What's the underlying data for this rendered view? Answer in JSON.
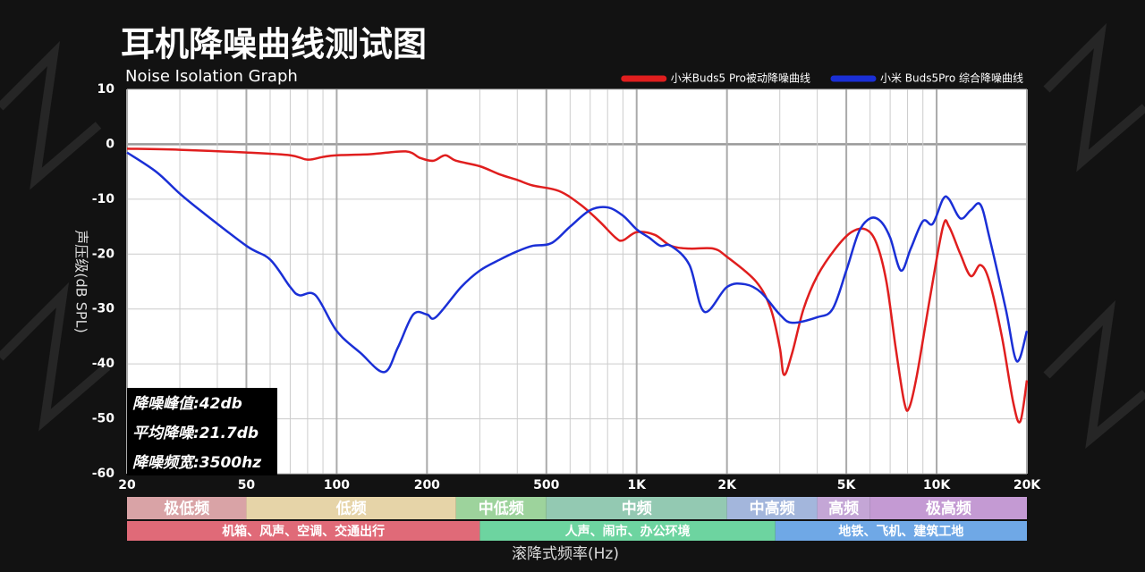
{
  "chart_data": {
    "type": "line",
    "title": "耳机降噪曲线测试图",
    "subtitle": "Noise Isolation Graph",
    "y_label": "声压级(dB SPL)",
    "x_label": "滚降式频率(Hz)",
    "log_x": true,
    "grid": true,
    "legend_position": "top-right",
    "xlim": [
      20,
      20000
    ],
    "xticks": [
      20,
      50,
      100,
      200,
      500,
      {
        "value": 1000,
        "label": "1K"
      },
      {
        "value": 2000,
        "label": "2K"
      },
      {
        "value": 5000,
        "label": "5K"
      },
      {
        "value": 10000,
        "label": "10K"
      },
      {
        "value": 20000,
        "label": "20K"
      }
    ],
    "xminorticks": [
      30,
      40,
      60,
      70,
      80,
      90,
      300,
      400,
      600,
      700,
      800,
      900,
      3000,
      4000,
      6000,
      7000,
      8000,
      9000
    ],
    "ylim": [
      -60,
      10
    ],
    "yticks": [
      -60,
      -50,
      -40,
      -30,
      -20,
      -10,
      0,
      10
    ],
    "series": [
      {
        "name": "小米Buds5 Pro被动降噪曲线",
        "color": "#e01e1e",
        "x": [
          20,
          30,
          50,
          70,
          80,
          90,
          100,
          130,
          170,
          190,
          210,
          230,
          250,
          300,
          350,
          400,
          450,
          550,
          650,
          750,
          850,
          900,
          1000,
          1150,
          1300,
          1500,
          1800,
          2000,
          2500,
          2800,
          3000,
          3100,
          3300,
          3600,
          4000,
          4600,
          5200,
          5800,
          6300,
          6800,
          7300,
          7800,
          8100,
          8600,
          9500,
          10500,
          11000,
          12000,
          13000,
          14000,
          15000,
          16500,
          18000,
          19000,
          20000
        ],
        "values": [
          -0.8,
          -1,
          -1.5,
          -2,
          -2.8,
          -2.3,
          -2,
          -1.8,
          -1.3,
          -2.5,
          -3,
          -2,
          -3,
          -4,
          -5.5,
          -6.5,
          -7.5,
          -8.5,
          -11,
          -14,
          -17,
          -17.5,
          -16,
          -16.5,
          -18.5,
          -19,
          -19,
          -20.5,
          -25,
          -30,
          -37,
          -42,
          -38,
          -30,
          -24,
          -19,
          -16,
          -15.5,
          -18,
          -25,
          -37,
          -47,
          -48,
          -42,
          -28,
          -15,
          -15,
          -20,
          -24,
          -22,
          -25,
          -35,
          -47,
          -50.5,
          -43
        ]
      },
      {
        "name": "小米 Buds5Pro 综合降噪曲线",
        "color": "#1a2fd6",
        "x": [
          20,
          25,
          30,
          35,
          50,
          60,
          70,
          75,
          85,
          100,
          120,
          144,
          160,
          180,
          200,
          214,
          260,
          300,
          350,
          400,
          450,
          520,
          600,
          700,
          800,
          900,
          1000,
          1100,
          1200,
          1300,
          1500,
          1680,
          2000,
          2300,
          2600,
          3000,
          3300,
          4000,
          4500,
          5000,
          5500,
          6000,
          6500,
          7000,
          7600,
          8200,
          9000,
          9700,
          10500,
          11000,
          12000,
          13000,
          14000,
          15000,
          17000,
          18500,
          20000
        ],
        "values": [
          -1.5,
          -5,
          -9,
          -12,
          -18.5,
          -21,
          -26,
          -27.5,
          -27.5,
          -34,
          -38,
          -41.5,
          -37,
          -31,
          -31,
          -31.5,
          -26,
          -23,
          -21,
          -19.5,
          -18.5,
          -18,
          -15,
          -12,
          -11.5,
          -13,
          -15.5,
          -17,
          -18.5,
          -18.5,
          -22,
          -30.5,
          -26,
          -25.5,
          -27,
          -31,
          -32.5,
          -31.5,
          -30,
          -23,
          -16,
          -13.5,
          -14,
          -17,
          -23,
          -19,
          -14,
          -14.5,
          -10,
          -10,
          -13.5,
          -12,
          -11,
          -17,
          -30,
          -39.5,
          -34
        ]
      }
    ],
    "annotations": [
      "降噪峰值:42db",
      "平均降噪:21.7db",
      "降噪频宽:3500hz"
    ],
    "bands": [
      {
        "label": "极低频",
        "from": 20,
        "to": 50,
        "color": "#d9a3a6"
      },
      {
        "label": "低频",
        "from": 50,
        "to": 250,
        "color": "#e6d4a8"
      },
      {
        "label": "中低频",
        "from": 250,
        "to": 500,
        "color": "#9dd39c"
      },
      {
        "label": "中频",
        "from": 500,
        "to": 2000,
        "color": "#93c9b2"
      },
      {
        "label": "中高频",
        "from": 2000,
        "to": 4000,
        "color": "#a3b6dc"
      },
      {
        "label": "高频",
        "from": 4000,
        "to": 6000,
        "color": "#c4a6d6"
      },
      {
        "label": "极高频",
        "from": 6000,
        "to": 20000,
        "color": "#c49ad3"
      }
    ],
    "scenes": [
      {
        "label": "机箱、风声、空调、交通出行",
        "from": 20,
        "to": 300,
        "color": "#e06a78"
      },
      {
        "label": "人声、闹市、办公环境",
        "from": 300,
        "to": 2900,
        "color": "#6dd4a0"
      },
      {
        "label": "地铁、飞机、建筑工地",
        "from": 2900,
        "to": 20000,
        "color": "#6fa8e6"
      }
    ]
  }
}
